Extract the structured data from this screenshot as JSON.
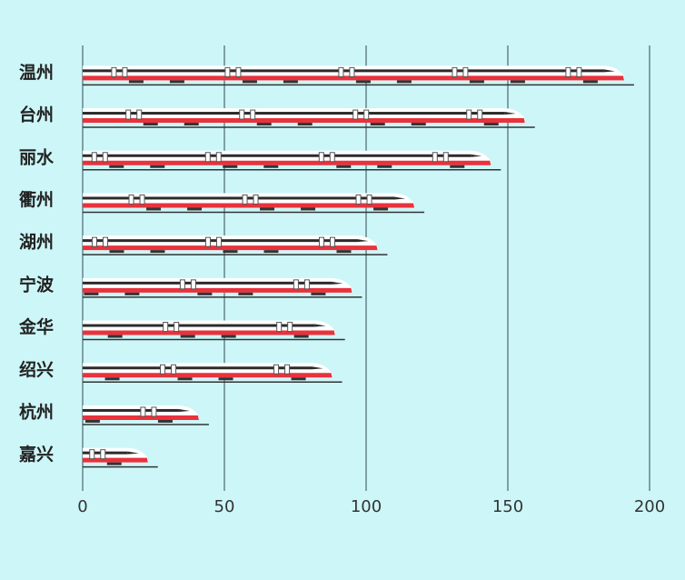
{
  "chart_data": {
    "type": "bar",
    "orientation": "horizontal",
    "categories": [
      "温州",
      "台州",
      "丽水",
      "衢州",
      "湖州",
      "宁波",
      "金华",
      "绍兴",
      "杭州",
      "嘉兴"
    ],
    "values": [
      191,
      156,
      144,
      117,
      104,
      95,
      89,
      88,
      41,
      23
    ],
    "color": "#e8323c",
    "xlim": [
      0,
      200
    ],
    "xticks": [
      0,
      50,
      100,
      150,
      200
    ],
    "grid": true
  }
}
